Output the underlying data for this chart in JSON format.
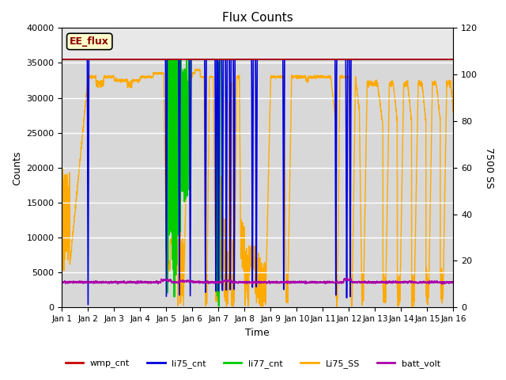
{
  "title": "Flux Counts",
  "xlabel": "Time",
  "ylabel_left": "Counts",
  "ylabel_right": "7500 SS",
  "xlim": [
    0,
    15
  ],
  "ylim_left": [
    0,
    40000
  ],
  "ylim_right": [
    0,
    120
  ],
  "xtick_labels": [
    "Jan 1",
    "Jan 2",
    "Jan 3",
    "Jan 4",
    "Jan 5",
    "Jan 6",
    "Jan 7",
    "Jan 8",
    "Jan 9",
    "Jan 10",
    "Jan 11",
    "Jan 12",
    "Jan 13",
    "Jan 14",
    "Jan 15",
    "Jan 16"
  ],
  "xtick_positions": [
    0,
    1,
    2,
    3,
    4,
    5,
    6,
    7,
    8,
    9,
    10,
    11,
    12,
    13,
    14,
    15
  ],
  "yticks_left": [
    0,
    5000,
    10000,
    15000,
    20000,
    25000,
    30000,
    35000,
    40000
  ],
  "yticks_right": [
    0,
    20,
    40,
    60,
    80,
    100,
    120
  ],
  "bg_color": "#d8d8d8",
  "fig_bg_color": "#ffffff",
  "upper_band_color": "#e8e8e8",
  "legend_box_label": "EE_flux",
  "series": {
    "wmp_cnt": {
      "color": "#cc0000",
      "label": "wmp_cnt"
    },
    "li75_cnt": {
      "color": "#0000dd",
      "label": "li75_cnt"
    },
    "li77_cnt": {
      "color": "#00cc00",
      "label": "li77_cnt"
    },
    "Li75_SS": {
      "color": "#ffaa00",
      "label": "Li75_SS"
    },
    "batt_volt": {
      "color": "#aa00aa",
      "label": "batt_volt"
    }
  }
}
